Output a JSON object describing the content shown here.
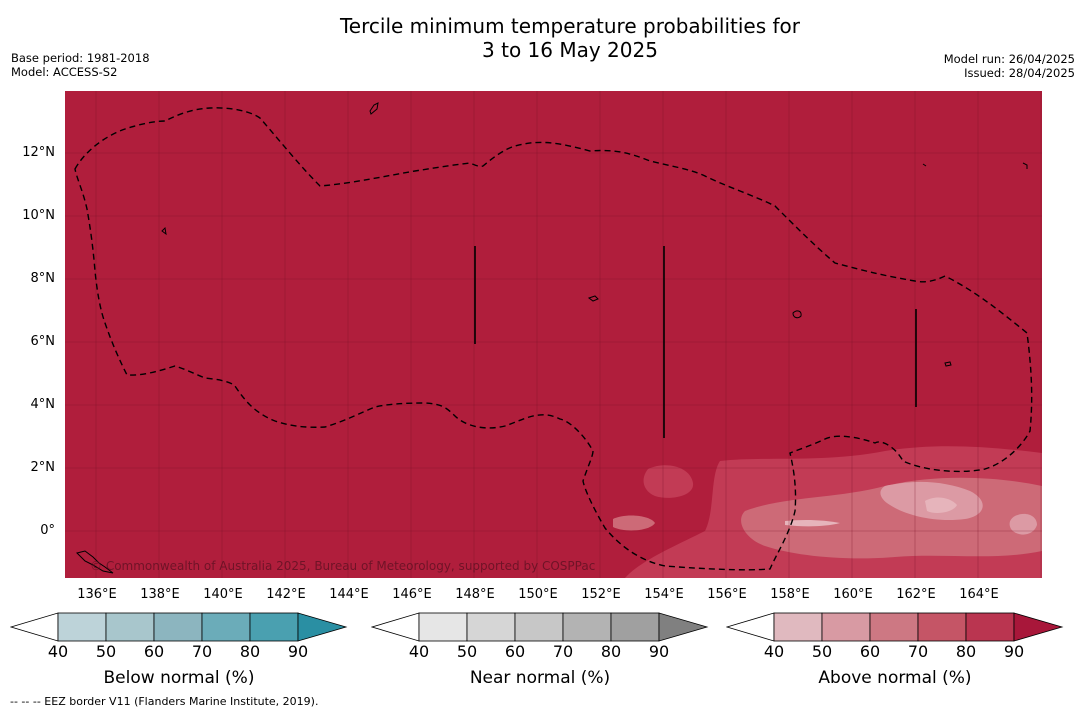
{
  "title": {
    "line1": "Tercile minimum temperature probabilities for",
    "line2": "3 to 16 May 2025"
  },
  "meta_left": {
    "base_period": "Base period: 1981-2018",
    "model": "Model: ACCESS-S2"
  },
  "meta_right": {
    "model_run": "Model run: 26/04/2025",
    "issued": "Issued: 28/04/2025"
  },
  "map": {
    "background_color": "#b01e3c",
    "latitude_labels": [
      "12°N",
      "10°N",
      "8°N",
      "6°N",
      "4°N",
      "2°N",
      "0°"
    ],
    "longitude_labels": [
      "136°E",
      "138°E",
      "140°E",
      "142°E",
      "144°E",
      "146°E",
      "148°E",
      "150°E",
      "152°E",
      "154°E",
      "156°E",
      "158°E",
      "160°E",
      "162°E",
      "164°E"
    ],
    "copyright": "© Commonwealth of Australia 2025, Bureau of Meteorology, supported by COSPPac",
    "eez_border_style": "dashed",
    "gridlines": true
  },
  "colorbars": [
    {
      "title": "Below normal (%)",
      "ticks": [
        "40",
        "50",
        "60",
        "70",
        "80",
        "90"
      ],
      "colors": [
        "#ffffff",
        "#bdd3d9",
        "#a8c6cc",
        "#8cb5bf",
        "#6bacb9",
        "#4aa0b0",
        "#2a8fa3"
      ]
    },
    {
      "title": "Near normal (%)",
      "ticks": [
        "40",
        "50",
        "60",
        "70",
        "80",
        "90"
      ],
      "colors": [
        "#ffffff",
        "#e6e6e6",
        "#d6d6d6",
        "#c7c7c7",
        "#b3b3b3",
        "#a0a0a0",
        "#808080"
      ]
    },
    {
      "title": "Above normal (%)",
      "ticks": [
        "40",
        "50",
        "60",
        "70",
        "80",
        "90"
      ],
      "colors": [
        "#ffffff",
        "#e0b9bf",
        "#d89aa3",
        "#cd7883",
        "#c55566",
        "#ba3550",
        "#a8173a"
      ]
    }
  ],
  "footer": "--  --  -- EEZ border V11 (Flanders Marine Institute, 2019)."
}
